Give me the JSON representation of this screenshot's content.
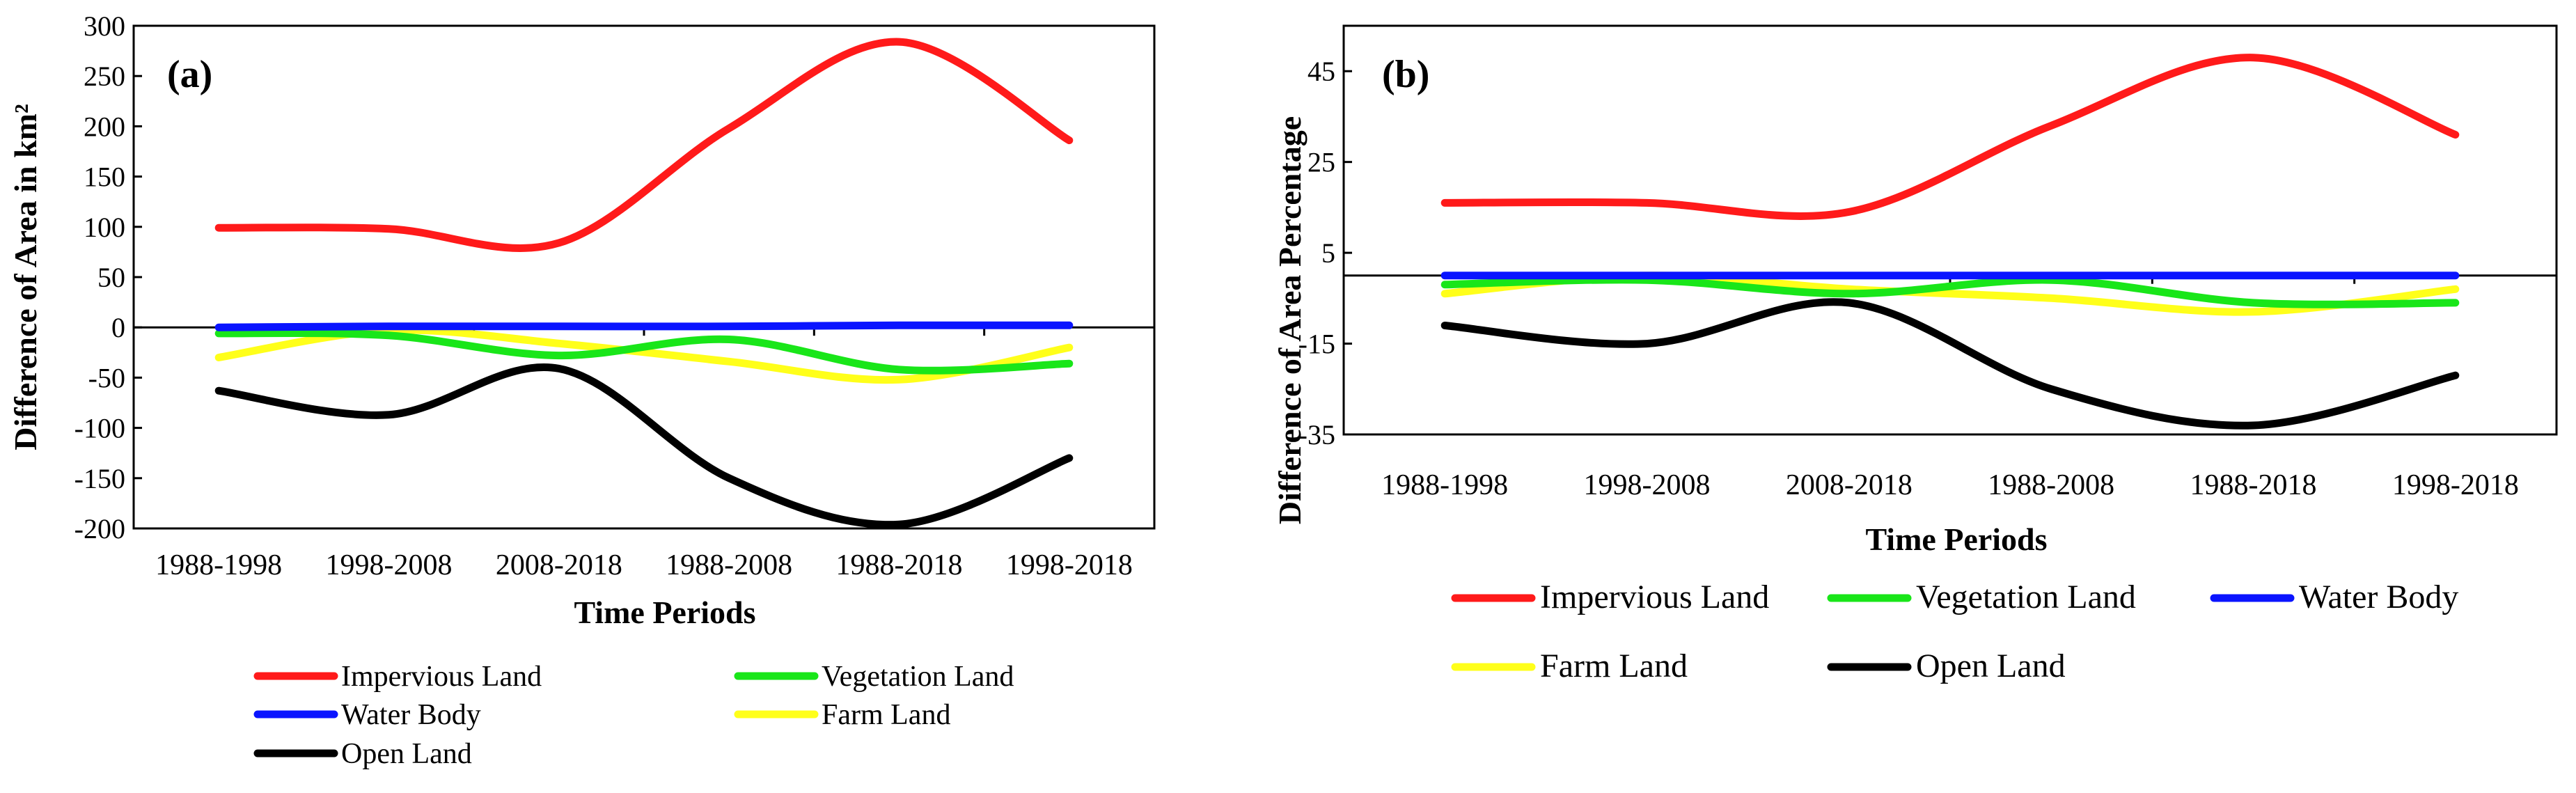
{
  "colors": {
    "Impervious Land": "#ff1a1a",
    "Vegetation Land": "#19e619",
    "Water Body": "#0a14ff",
    "Farm Land": "#ffff1a",
    "Open Land": "#000000"
  },
  "chart_data": [
    {
      "type": "line",
      "panel_label": "(a)",
      "title": "",
      "xlabel": "Time Periods",
      "ylabel": "Difference of Area in km²",
      "ylim": [
        -200,
        300
      ],
      "yticks": [
        "300",
        "250",
        "200",
        "150",
        "100",
        "50",
        "0",
        "-50",
        "-100",
        "-150",
        "-200"
      ],
      "categories": [
        "1988-1998",
        "1998-2008",
        "2008-2018",
        "1988-2008",
        "1988-2018",
        "1998-2018"
      ],
      "series": [
        {
          "name": "Impervious Land",
          "values": [
            99,
            98,
            84,
            198,
            284,
            186
          ]
        },
        {
          "name": "Vegetation Land",
          "values": [
            -6,
            -8,
            -28,
            -12,
            -42,
            -36
          ]
        },
        {
          "name": "Water Body",
          "values": [
            0,
            1,
            1,
            1,
            2,
            2
          ]
        },
        {
          "name": "Farm Land",
          "values": [
            -30,
            -3,
            -16,
            -34,
            -52,
            -20
          ]
        },
        {
          "name": "Open Land",
          "values": [
            -63,
            -87,
            -41,
            -150,
            -196,
            -130
          ]
        }
      ],
      "legend": {
        "placement": "bottom",
        "entries": [
          "Impervious Land",
          "Vegetation Land",
          "Water Body",
          "Farm Land",
          "Open Land"
        ]
      }
    },
    {
      "type": "line",
      "panel_label": "(b)",
      "title": "",
      "xlabel": "Time Periods",
      "ylabel": "Difference of Area Percentage",
      "ylim": [
        -35,
        55
      ],
      "yticks": [
        "45",
        "25",
        "5",
        "-15",
        "-35"
      ],
      "categories": [
        "1988-1998",
        "1998-2008",
        "2008-2018",
        "1988-2008",
        "1988-2018",
        "1998-2018"
      ],
      "series": [
        {
          "name": "Impervious Land",
          "values": [
            16,
            16,
            14,
            33,
            48,
            31
          ]
        },
        {
          "name": "Vegetation Land",
          "values": [
            -2,
            -1,
            -4,
            -1,
            -6,
            -6
          ]
        },
        {
          "name": "Water Body",
          "values": [
            0,
            0,
            0,
            0,
            0,
            0
          ]
        },
        {
          "name": "Farm Land",
          "values": [
            -4,
            0,
            -3,
            -5,
            -8,
            -3
          ]
        },
        {
          "name": "Open Land",
          "values": [
            -11,
            -15,
            -6,
            -25,
            -33,
            -22
          ]
        }
      ],
      "legend": {
        "placement": "bottom",
        "entries": [
          "Impervious Land",
          "Vegetation Land",
          "Water Body",
          "Farm Land",
          "Open Land"
        ]
      }
    }
  ]
}
